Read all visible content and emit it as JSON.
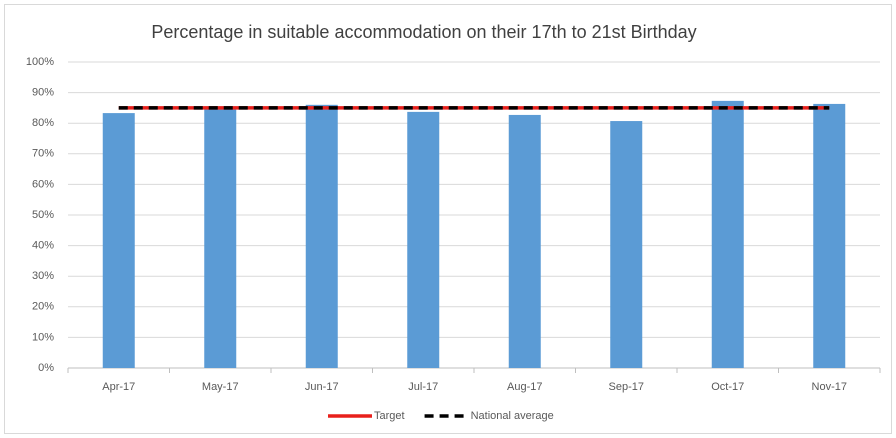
{
  "chart_data": {
    "type": "bar",
    "title": "Percentage in suitable accommodation on their 17th to 21st Birthday",
    "categories": [
      "Apr-17",
      "May-17",
      "Jun-17",
      "Jul-17",
      "Aug-17",
      "Sep-17",
      "Oct-17",
      "Nov-17"
    ],
    "values": [
      83.3,
      85.5,
      86,
      83.7,
      82.7,
      80.7,
      87.3,
      86.3
    ],
    "color": "#5b9bd5",
    "ylim": [
      0,
      100
    ],
    "yticks": [
      {
        "value": 0,
        "label": "0%"
      },
      {
        "value": 10,
        "label": "10%"
      },
      {
        "value": 20,
        "label": "20%"
      },
      {
        "value": 30,
        "label": "30%"
      },
      {
        "value": 40,
        "label": "40%"
      },
      {
        "value": 50,
        "label": "50%"
      },
      {
        "value": 60,
        "label": "60%"
      },
      {
        "value": 70,
        "label": "70%"
      },
      {
        "value": 80,
        "label": "80%"
      },
      {
        "value": 90,
        "label": "90%"
      },
      {
        "value": 100,
        "label": "100%"
      }
    ],
    "grid": true,
    "series": [
      {
        "name": "Target",
        "color": "#e8201c",
        "dash": false,
        "values": [
          85,
          85,
          85,
          85,
          85,
          85,
          85,
          85
        ]
      },
      {
        "name": "National average",
        "color": "#000000",
        "dash": true,
        "values": [
          85,
          85,
          85,
          85,
          85,
          85,
          85,
          85
        ]
      }
    ],
    "legend": "bottom"
  }
}
